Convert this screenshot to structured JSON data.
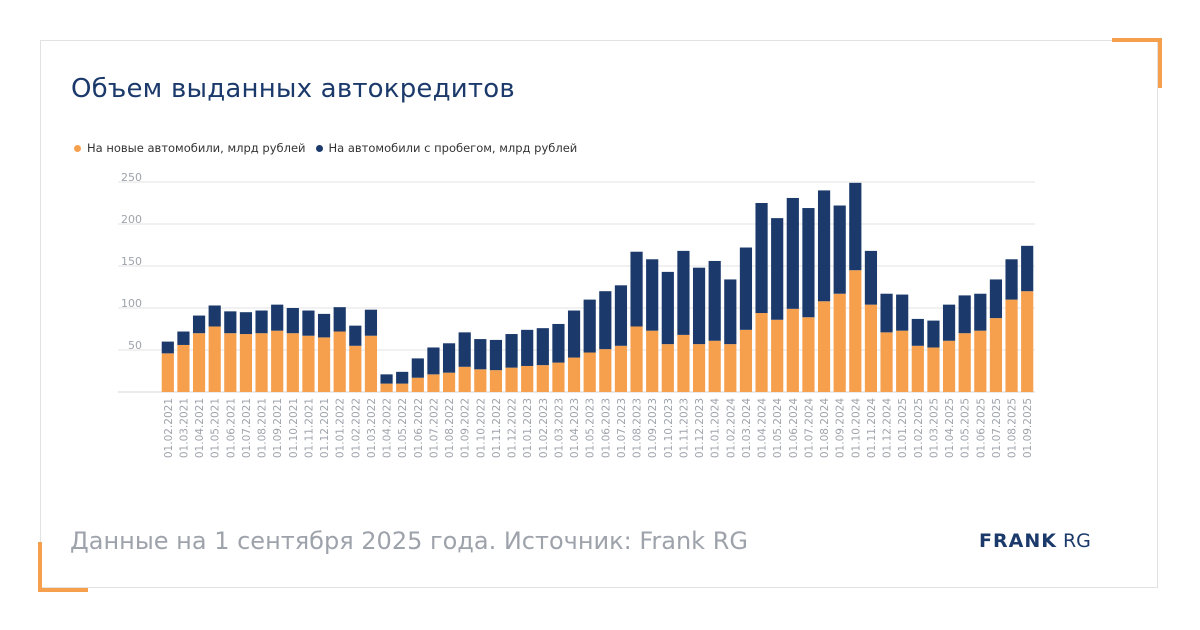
{
  "title": "Объем выданных автокредитов",
  "footer": "Данные на 1 сентября 2025 года. Источник: Frank RG",
  "logo": {
    "bold": "FRANK",
    "light": "RG"
  },
  "colors": {
    "new": "#f6a04d",
    "used": "#1b3a6b",
    "accent": "#f6a04d",
    "grid": "#e3e3e3",
    "tick": "#9ea3ab"
  },
  "chart_data": {
    "type": "bar",
    "stacked": true,
    "title": "Объем выданных автокредитов",
    "xlabel": "",
    "ylabel": "",
    "ylim": [
      0,
      250
    ],
    "yticks": [
      50,
      100,
      150,
      200,
      250
    ],
    "grid": true,
    "legend_position": "top-left",
    "categories": [
      "01.02.2021",
      "01.03.2021",
      "01.04.2021",
      "01.05.2021",
      "01.06.2021",
      "01.07.2021",
      "01.08.2021",
      "01.09.2021",
      "01.10.2021",
      "01.11.2021",
      "01.12.2021",
      "01.01.2022",
      "01.02.2022",
      "01.03.2022",
      "01.04.2022",
      "01.05.2022",
      "01.06.2022",
      "01.07.2022",
      "01.08.2022",
      "01.09.2022",
      "01.10.2022",
      "01.11.2022",
      "01.12.2022",
      "01.01.2023",
      "01.02.2023",
      "01.03.2023",
      "01.04.2023",
      "01.05.2023",
      "01.06.2023",
      "01.07.2023",
      "01.08.2023",
      "01.09.2023",
      "01.10.2023",
      "01.11.2023",
      "01.12.2023",
      "01.01.2024",
      "01.02.2024",
      "01.03.2024",
      "01.04.2024",
      "01.05.2024",
      "01.06.2024",
      "01.07.2024",
      "01.08.2024",
      "01.09.2024",
      "01.10.2024",
      "01.11.2024",
      "01.12.2024",
      "01.01.2025",
      "01.02.2025",
      "01.03.2025",
      "01.04.2025",
      "01.05.2025",
      "01.06.2025",
      "01.07.2025",
      "01.08.2025",
      "01.09.2025"
    ],
    "series": [
      {
        "name": "На новые автомобили, млрд рублей",
        "values": [
          46,
          56,
          70,
          78,
          70,
          69,
          70,
          73,
          70,
          67,
          65,
          72,
          55,
          67,
          10,
          10,
          17,
          21,
          23,
          30,
          27,
          26,
          29,
          31,
          32,
          35,
          41,
          47,
          51,
          55,
          78,
          73,
          57,
          68,
          57,
          61,
          57,
          74,
          94,
          86,
          99,
          89,
          108,
          117,
          145,
          104,
          71,
          73,
          55,
          53,
          61,
          70,
          73,
          88,
          110,
          120
        ]
      },
      {
        "name": "На автомобили с пробегом, млрд рублей",
        "values": [
          14,
          16,
          21,
          25,
          26,
          26,
          27,
          31,
          30,
          30,
          28,
          29,
          24,
          31,
          11,
          14,
          23,
          32,
          35,
          41,
          36,
          36,
          40,
          43,
          44,
          46,
          56,
          63,
          69,
          72,
          89,
          85,
          86,
          100,
          91,
          95,
          77,
          98,
          131,
          121,
          132,
          130,
          132,
          105,
          104,
          64,
          46,
          43,
          32,
          32,
          43,
          45,
          44,
          46,
          48,
          54
        ]
      }
    ]
  }
}
